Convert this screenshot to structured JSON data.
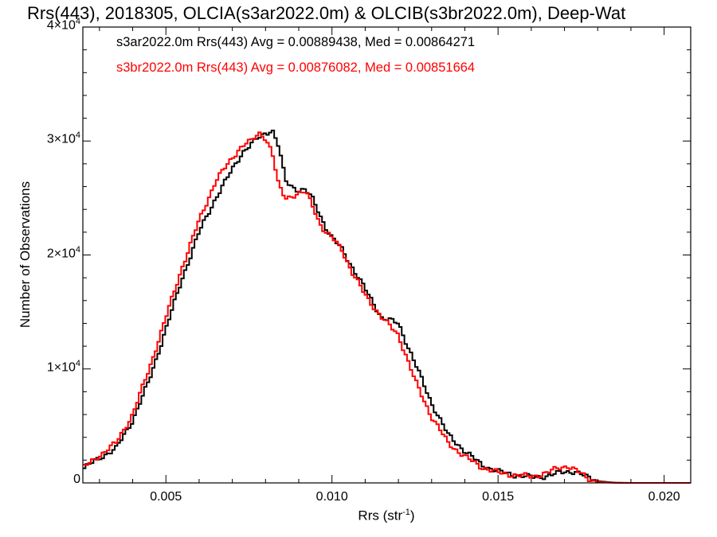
{
  "chart_data": {
    "type": "line",
    "title": "Rrs(443), 2018305, OLCIA(s3ar2022.0m) & OLCIB(s3br2022.0m), Deep-Wat",
    "xlabel": "Rrs (str",
    "xlabel_sup": "-1",
    "xlabel_end": ")",
    "ylabel": "Number of Observations",
    "xlim": [
      0.0025,
      0.0208
    ],
    "ylim": [
      0,
      40000
    ],
    "xticks": [
      "0.005",
      "0.010",
      "0.015",
      "0.020"
    ],
    "xtick_values": [
      0.005,
      0.01,
      0.015,
      0.02
    ],
    "yticks": [
      {
        "value": 0,
        "base": "0",
        "exp": ""
      },
      {
        "value": 10000,
        "base": "1×10",
        "exp": "4"
      },
      {
        "value": 20000,
        "base": "2×10",
        "exp": "4"
      },
      {
        "value": 30000,
        "base": "3×10",
        "exp": "4"
      },
      {
        "value": 40000,
        "base": "4×10",
        "exp": "4"
      }
    ],
    "grid": false,
    "legend_position": "top-left",
    "series": [
      {
        "name": "s3ar2022.0m Rrs(443) Avg = 0.00889438, Med = 0.00864271",
        "color": "#000000",
        "x": [
          0.0025,
          0.003,
          0.0035,
          0.004,
          0.0045,
          0.005,
          0.0055,
          0.006,
          0.0065,
          0.007,
          0.0073,
          0.0076,
          0.0078,
          0.008,
          0.0082,
          0.0084,
          0.0086,
          0.0088,
          0.009,
          0.0092,
          0.0094,
          0.0096,
          0.0098,
          0.01,
          0.0103,
          0.0106,
          0.011,
          0.0115,
          0.012,
          0.0125,
          0.013,
          0.0135,
          0.014,
          0.0145,
          0.015,
          0.0155,
          0.016,
          0.0165,
          0.017,
          0.0173,
          0.0176,
          0.018,
          0.0185,
          0.019,
          0.0208
        ],
        "y": [
          1200,
          2200,
          3000,
          5500,
          9000,
          13500,
          18000,
          22000,
          25000,
          27500,
          29000,
          29800,
          30300,
          30700,
          31000,
          29500,
          26500,
          26000,
          25700,
          25700,
          25000,
          23800,
          22500,
          21500,
          20500,
          19000,
          17000,
          14500,
          14000,
          10500,
          7000,
          4200,
          2800,
          1600,
          1000,
          700,
          500,
          600,
          1000,
          1000,
          600,
          150,
          20,
          0,
          0
        ]
      },
      {
        "name": "s3br2022.0m Rrs(443) Avg = 0.00876082, Med = 0.00851664",
        "color": "#ff0000",
        "x": [
          0.0025,
          0.003,
          0.0035,
          0.004,
          0.0045,
          0.005,
          0.0055,
          0.006,
          0.0065,
          0.007,
          0.0072,
          0.0074,
          0.0076,
          0.0078,
          0.008,
          0.0082,
          0.0084,
          0.0086,
          0.0088,
          0.009,
          0.0092,
          0.0094,
          0.0096,
          0.0098,
          0.01,
          0.0103,
          0.0106,
          0.011,
          0.0115,
          0.012,
          0.0125,
          0.013,
          0.0135,
          0.014,
          0.0145,
          0.015,
          0.0155,
          0.016,
          0.0165,
          0.0168,
          0.0171,
          0.0174,
          0.0177,
          0.018,
          0.0185,
          0.019,
          0.0208
        ],
        "y": [
          1300,
          2400,
          3500,
          6000,
          10000,
          14500,
          19000,
          23000,
          26500,
          28500,
          29300,
          29800,
          30000,
          30700,
          30300,
          29000,
          26000,
          25000,
          25200,
          25400,
          25500,
          24500,
          23000,
          22000,
          21500,
          20500,
          18500,
          16500,
          14500,
          13000,
          9000,
          5800,
          3500,
          2300,
          1400,
          900,
          700,
          550,
          900,
          1300,
          1500,
          1000,
          400,
          80,
          10,
          0,
          0
        ]
      }
    ]
  }
}
